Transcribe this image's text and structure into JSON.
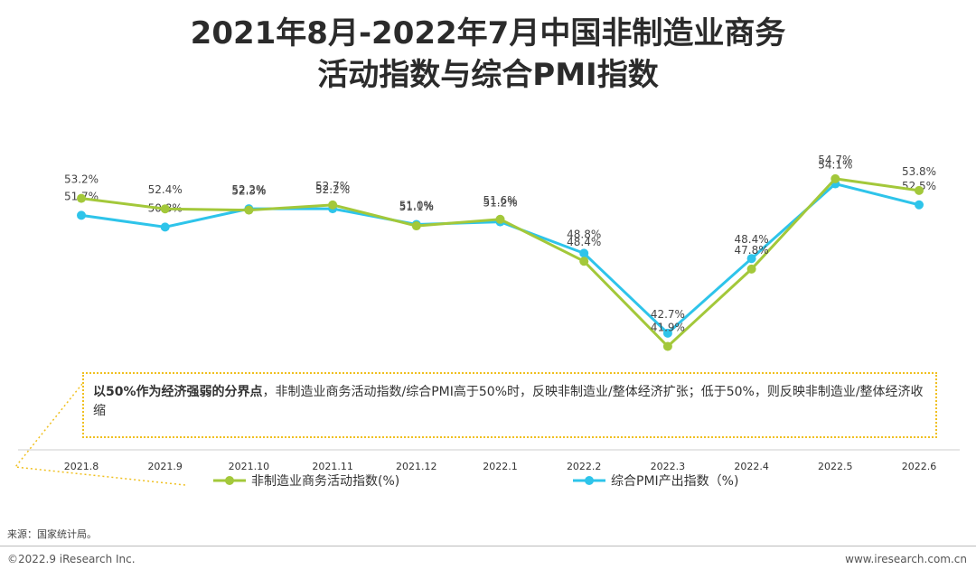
{
  "title_line1": "2021年8月-2022年7月中国非制造业商务",
  "title_line2": "活动指数与综合PMI指数",
  "chart_data": {
    "type": "line",
    "categories": [
      "2021.8",
      "2021.9",
      "2021.10",
      "2021.11",
      "2021.12",
      "2022.1",
      "2022.2",
      "2022.3",
      "2022.4",
      "2022.5",
      "2022.6"
    ],
    "ylim": [
      38,
      58
    ],
    "grid": false,
    "legend_position": "bottom",
    "series": [
      {
        "name": "综合PMI产出指数（%)",
        "color": "#2ec4ea",
        "values": [
          51.7,
          50.8,
          52.2,
          52.2,
          51.0,
          51.2,
          48.8,
          42.7,
          48.4,
          54.1,
          52.5
        ],
        "labels": [
          "51.7%",
          "50.8%",
          "52.2%",
          "52.2%",
          "51.0%",
          "51.2%",
          "48.8%",
          "42.7%",
          "48.4%",
          "54.1%",
          "52.5%"
        ]
      },
      {
        "name": "非制造业商务活动指数(%)",
        "color": "#a3c83a",
        "values": [
          53.2,
          52.4,
          52.3,
          52.7,
          51.1,
          51.6,
          48.4,
          41.9,
          47.8,
          54.7,
          53.8
        ],
        "labels": [
          "53.2%",
          "52.4%",
          "52.3%",
          "52.7%",
          "51.1%",
          "51.6%",
          "48.4%",
          "41.9%",
          "47.8%",
          "54.7%",
          "53.8%"
        ]
      }
    ]
  },
  "note": {
    "bold": "以50%作为经济强弱的分界点",
    "text": "，非制造业商务活动指数/综合PMI高于50%时，反映非制造业/整体经济扩张；低于50%，则反映非制造业/整体经济收缩"
  },
  "source": "来源：国家统计局。",
  "copyright": "©2022.9 iResearch Inc.",
  "site": "www.iresearch.com.cn",
  "colors": {
    "note_border": "#f0c020",
    "axis": "#cccccc"
  }
}
